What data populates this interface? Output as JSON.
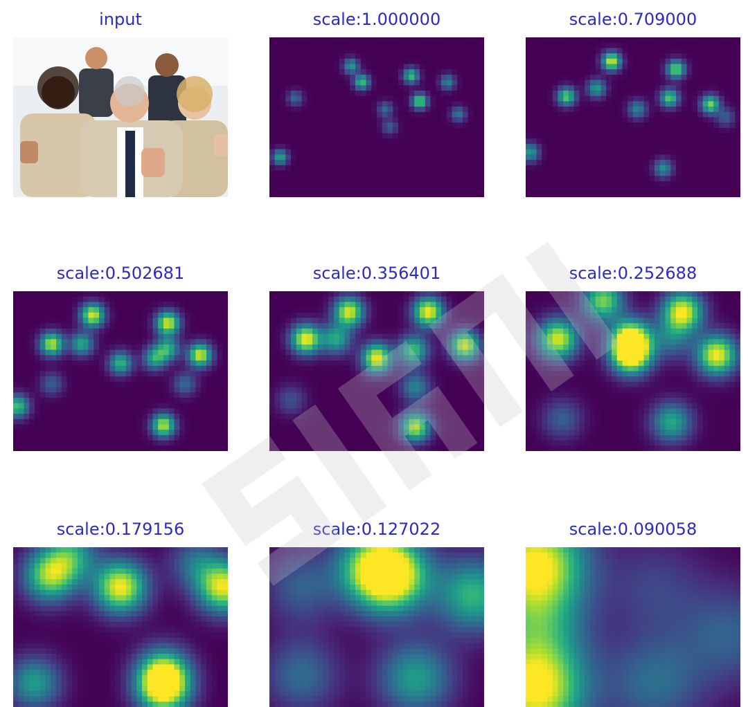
{
  "chart_data": [
    {
      "type": "image",
      "title": "input",
      "kind": "photo"
    },
    {
      "type": "heatmap",
      "title": "scale:1.000000",
      "peaks": [
        [
          0.43,
          0.28,
          0.7
        ],
        [
          0.38,
          0.18,
          0.55
        ],
        [
          0.66,
          0.24,
          0.7
        ],
        [
          0.7,
          0.4,
          0.8
        ],
        [
          0.83,
          0.28,
          0.45
        ],
        [
          0.12,
          0.38,
          0.35
        ],
        [
          0.05,
          0.75,
          0.6
        ],
        [
          0.54,
          0.45,
          0.35
        ],
        [
          0.88,
          0.48,
          0.4
        ],
        [
          0.56,
          0.56,
          0.3
        ]
      ],
      "sigma": 0.025
    },
    {
      "type": "heatmap",
      "title": "scale:0.709000",
      "peaks": [
        [
          0.4,
          0.15,
          0.95
        ],
        [
          0.19,
          0.37,
          0.75
        ],
        [
          0.33,
          0.32,
          0.55
        ],
        [
          0.7,
          0.2,
          0.8
        ],
        [
          0.67,
          0.38,
          0.75
        ],
        [
          0.86,
          0.42,
          0.8
        ],
        [
          0.02,
          0.72,
          0.55
        ],
        [
          0.64,
          0.82,
          0.5
        ],
        [
          0.52,
          0.45,
          0.45
        ],
        [
          0.93,
          0.5,
          0.3
        ]
      ],
      "sigma": 0.03
    },
    {
      "type": "heatmap",
      "title": "scale:0.502681",
      "peaks": [
        [
          0.37,
          0.15,
          0.95
        ],
        [
          0.72,
          0.2,
          0.95
        ],
        [
          0.72,
          0.36,
          0.6
        ],
        [
          0.18,
          0.33,
          0.9
        ],
        [
          0.32,
          0.33,
          0.6
        ],
        [
          0.87,
          0.4,
          0.95
        ],
        [
          0.5,
          0.45,
          0.65
        ],
        [
          0.66,
          0.42,
          0.6
        ],
        [
          0.7,
          0.84,
          0.9
        ],
        [
          0.02,
          0.72,
          0.7
        ],
        [
          0.8,
          0.58,
          0.35
        ],
        [
          0.18,
          0.58,
          0.3
        ]
      ],
      "sigma": 0.038
    },
    {
      "type": "heatmap",
      "title": "scale:0.356401",
      "peaks": [
        [
          0.37,
          0.13,
          0.95
        ],
        [
          0.74,
          0.13,
          1.0
        ],
        [
          0.17,
          0.3,
          1.0
        ],
        [
          0.31,
          0.3,
          0.6
        ],
        [
          0.5,
          0.42,
          1.0
        ],
        [
          0.67,
          0.37,
          0.7
        ],
        [
          0.91,
          0.34,
          0.95
        ],
        [
          0.68,
          0.85,
          0.9
        ],
        [
          0.68,
          0.6,
          0.45
        ],
        [
          0.1,
          0.68,
          0.25
        ]
      ],
      "sigma": 0.048
    },
    {
      "type": "heatmap",
      "title": "scale:0.252688",
      "peaks": [
        [
          0.36,
          0.06,
          0.8
        ],
        [
          0.73,
          0.13,
          1.0
        ],
        [
          0.15,
          0.3,
          0.95
        ],
        [
          0.49,
          0.3,
          1.0
        ],
        [
          0.49,
          0.4,
          1.0
        ],
        [
          0.89,
          0.4,
          1.0
        ],
        [
          0.68,
          0.82,
          0.6
        ],
        [
          0.17,
          0.8,
          0.3
        ],
        [
          0.68,
          0.3,
          0.35
        ]
      ],
      "sigma": 0.065
    },
    {
      "type": "heatmap",
      "title": "scale:0.179156",
      "peaks": [
        [
          0.5,
          0.25,
          1.0
        ],
        [
          0.98,
          0.25,
          0.95
        ],
        [
          0.17,
          0.18,
          0.8
        ],
        [
          0.27,
          0.05,
          0.55
        ],
        [
          0.7,
          0.88,
          1.0
        ],
        [
          0.7,
          0.78,
          0.6
        ],
        [
          0.1,
          0.85,
          0.55
        ],
        [
          0.85,
          0.1,
          0.35
        ]
      ],
      "sigma": 0.085
    },
    {
      "type": "heatmap",
      "title": "scale:0.127022",
      "peaks": [
        [
          0.57,
          0.18,
          1.0
        ],
        [
          0.48,
          0.12,
          0.6
        ],
        [
          0.95,
          0.3,
          0.65
        ],
        [
          0.68,
          0.82,
          0.55
        ],
        [
          0.15,
          0.8,
          0.35
        ],
        [
          0.15,
          0.25,
          0.3
        ]
      ],
      "sigma": 0.12
    },
    {
      "type": "heatmap",
      "title": "scale:0.090058",
      "peaks": [
        [
          0.05,
          0.1,
          1.0
        ],
        [
          0.05,
          0.9,
          1.0
        ],
        [
          0.05,
          0.5,
          0.45
        ],
        [
          0.6,
          0.85,
          0.35
        ],
        [
          0.95,
          0.55,
          0.3
        ],
        [
          0.6,
          0.25,
          0.2
        ]
      ],
      "sigma": 0.16
    }
  ],
  "colors": {
    "title": "#2b2bc4",
    "colormap": [
      "#440154",
      "#482878",
      "#3e4a89",
      "#31688e",
      "#26828e",
      "#1f9e89",
      "#35b779",
      "#6ece58",
      "#b5de2b",
      "#fde725"
    ],
    "watermark": "#c8c8c8"
  }
}
